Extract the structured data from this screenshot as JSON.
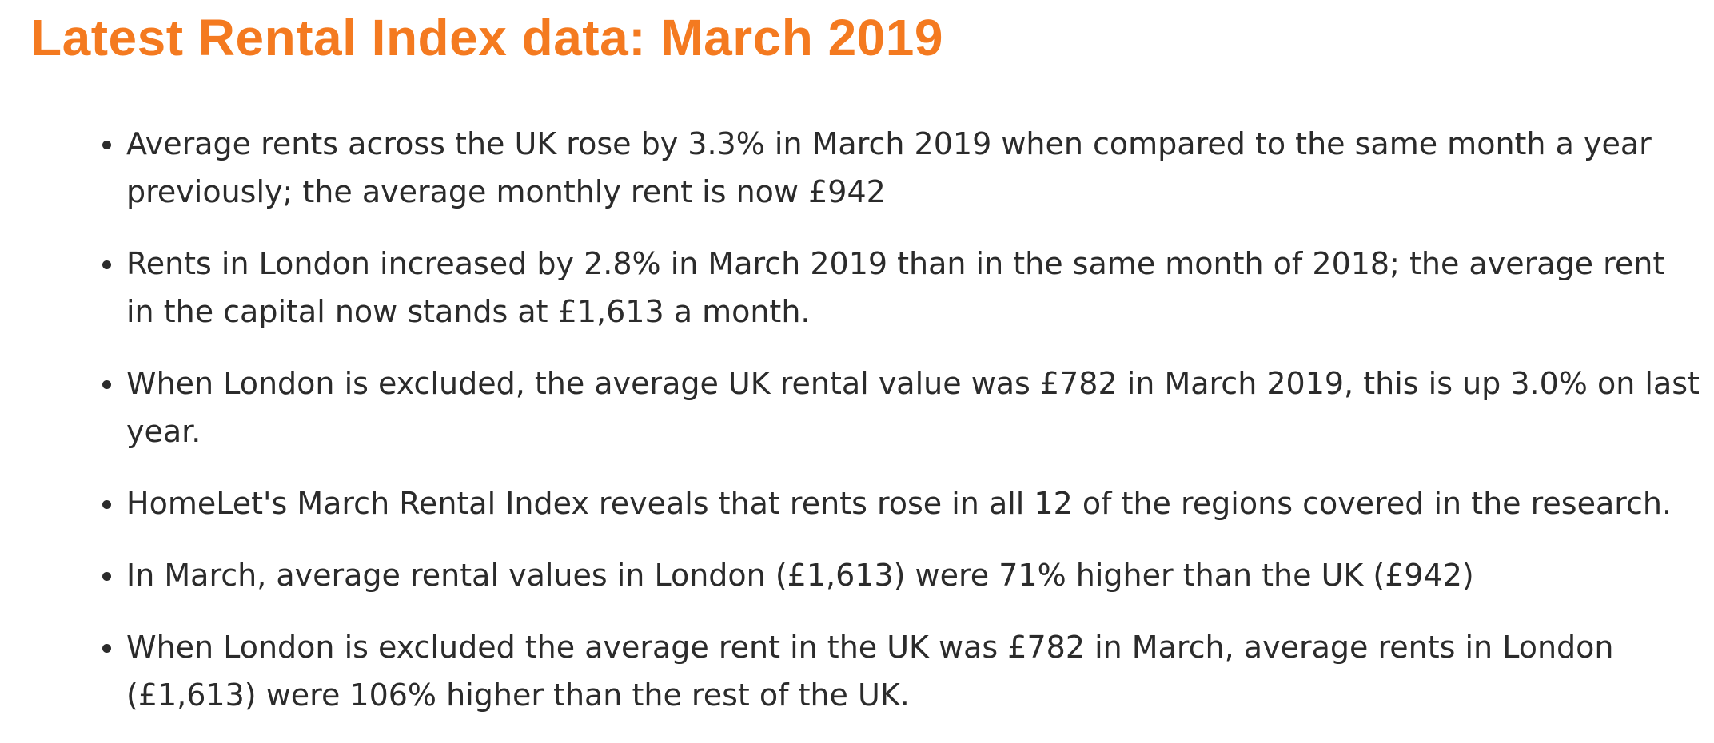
{
  "title": "Latest Rental Index data: March 2019",
  "items": [
    "Average rents across the UK rose by 3.3% in March 2019 when compared to the same month a year previously; the average monthly rent is now £942",
    "Rents in London increased by 2.8% in March 2019 than in the same month of 2018; the average rent in the capital now stands at £1,613 a month.",
    "When London is excluded, the average UK rental value was £782 in March 2019, this is up 3.0% on last year.",
    "HomeLet's March Rental Index reveals that rents rose in all 12 of the regions covered in the research.",
    "In March, average rental values in London (£1,613) were 71% higher than the UK (£942)",
    "When London is excluded the average rent in the UK was £782 in March, average rents in London (£1,613) were 106% higher than the rest of the UK."
  ],
  "colors": {
    "title": "#f47a20",
    "text": "#2b2b2b",
    "background": "#ffffff"
  }
}
